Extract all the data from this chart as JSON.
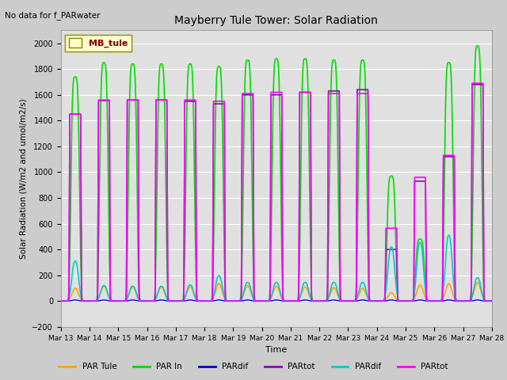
{
  "title": "Mayberry Tule Tower: Solar Radiation",
  "no_data_text": "No data for f_PARwater",
  "ylabel": "Solar Radiation (W/m2 and umol/m2/s)",
  "xlabel": "Time",
  "ylim": [
    -200,
    2100
  ],
  "yticks": [
    -200,
    0,
    200,
    400,
    600,
    800,
    1000,
    1200,
    1400,
    1600,
    1800,
    2000
  ],
  "legend_label": "MB_tule",
  "bg_color": "#cccccc",
  "plot_bg_color": "#e0e0e0",
  "series": [
    {
      "label": "PAR Tule",
      "color": "#ffa500",
      "lw": 1.2
    },
    {
      "label": "PAR In",
      "color": "#00dd00",
      "lw": 1.2
    },
    {
      "label": "PARdif",
      "color": "#0000cc",
      "lw": 1.0
    },
    {
      "label": "PARtot",
      "color": "#9900bb",
      "lw": 1.2
    },
    {
      "label": "PARdif",
      "color": "#00cccc",
      "lw": 1.2
    },
    {
      "label": "PARtot",
      "color": "#ff00ff",
      "lw": 1.2
    }
  ],
  "num_days": 15,
  "start_day": 13,
  "peaks": {
    "PAR_In": [
      1740,
      1850,
      1840,
      1840,
      1840,
      1820,
      1870,
      1880,
      1880,
      1870,
      1870,
      970,
      480,
      1850,
      1980
    ],
    "PAR_Tule": [
      100,
      115,
      110,
      110,
      110,
      135,
      120,
      115,
      110,
      105,
      100,
      65,
      125,
      135,
      145
    ],
    "PARdif_b": [
      8,
      8,
      8,
      8,
      8,
      8,
      8,
      8,
      8,
      8,
      8,
      8,
      8,
      8,
      8
    ],
    "PARtot_b": [
      1450,
      1555,
      1560,
      1560,
      1550,
      1530,
      1600,
      1600,
      1620,
      1630,
      1640,
      400,
      930,
      1120,
      1680
    ],
    "PARdif_c": [
      310,
      120,
      115,
      115,
      125,
      195,
      145,
      145,
      145,
      145,
      145,
      420,
      455,
      510,
      180
    ],
    "PARtot_m": [
      1450,
      1560,
      1560,
      1560,
      1560,
      1550,
      1610,
      1620,
      1620,
      1610,
      1610,
      565,
      960,
      1130,
      1690
    ]
  },
  "pulse_width_frac": {
    "PAR_In": 0.42,
    "PAR_Tule": 0.38,
    "PARdif_b": 0.35,
    "PARtot_b": 0.44,
    "PARdif_c": 0.38,
    "PARtot_m": 0.44
  }
}
